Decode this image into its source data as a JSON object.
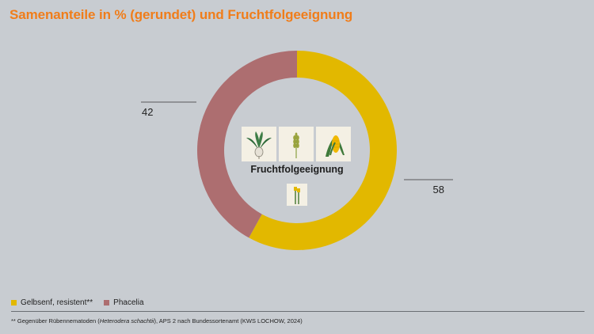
{
  "title": "Samenanteile in % (gerundet) und Fruchtfolgeeignung",
  "center_label": "Fruchtfolgeeignung",
  "icons": [
    "sugar-beet-icon",
    "wheat-icon",
    "corn-icon",
    "rapeseed-icon"
  ],
  "chart_data": {
    "type": "pie",
    "donut": true,
    "categories": [
      "Gelbsenf, resistent**",
      "Phacelia"
    ],
    "values": [
      58,
      42
    ],
    "value_labels": [
      "58",
      "42"
    ],
    "colors": [
      "#e2b800",
      "#ad6e70"
    ],
    "legend_position": "bottom-left"
  },
  "legend": [
    {
      "label": "Gelbsenf, resistent**",
      "color": "#e2b800"
    },
    {
      "label": "Phacelia",
      "color": "#ad6e70"
    }
  ],
  "footnote": {
    "prefix": "** Gegenüber Rübennematoden (",
    "italic": "Heterodera schachtii",
    "suffix": "), APS 2 nach Bundessortenamt (KWS LOCHOW, 2024)"
  }
}
